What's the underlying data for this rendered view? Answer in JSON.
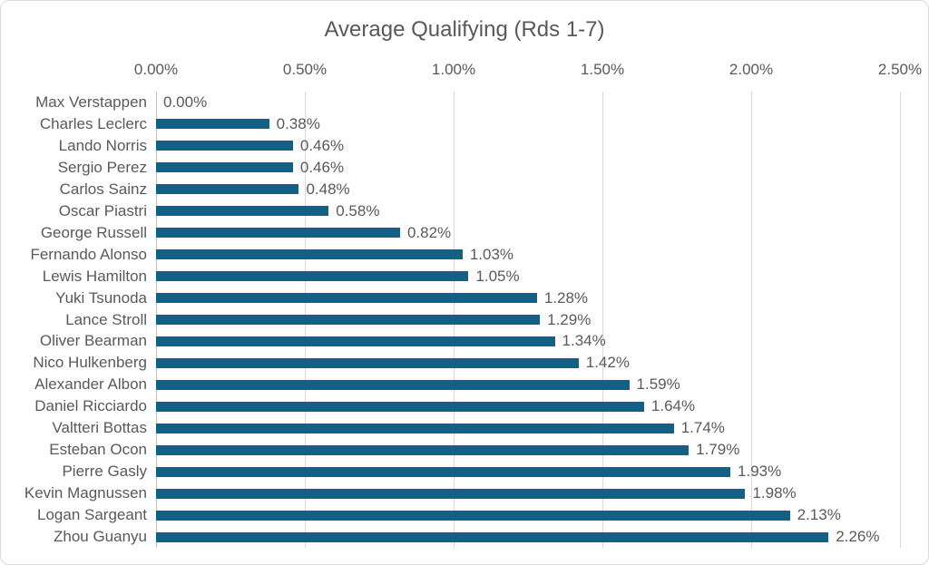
{
  "chart_data": {
    "type": "bar",
    "orientation": "horizontal",
    "title": "Average Qualifying (Rds 1-7)",
    "categories": [
      "Max Verstappen",
      "Charles Leclerc",
      "Lando Norris",
      "Sergio Perez",
      "Carlos Sainz",
      "Oscar Piastri",
      "George Russell",
      "Fernando Alonso",
      "Lewis Hamilton",
      "Yuki Tsunoda",
      "Lance Stroll",
      "Oliver Bearman",
      "Nico Hulkenberg",
      "Alexander Albon",
      "Daniel Ricciardo",
      "Valtteri Bottas",
      "Esteban Ocon",
      "Pierre Gasly",
      "Kevin Magnussen",
      "Logan Sargeant",
      "Zhou Guanyu"
    ],
    "values": [
      0.0,
      0.38,
      0.46,
      0.46,
      0.48,
      0.58,
      0.82,
      1.03,
      1.05,
      1.28,
      1.29,
      1.34,
      1.42,
      1.59,
      1.64,
      1.74,
      1.79,
      1.93,
      1.98,
      2.13,
      2.26
    ],
    "value_labels": [
      "0.00%",
      "0.38%",
      "0.46%",
      "0.46%",
      "0.48%",
      "0.58%",
      "0.82%",
      "1.03%",
      "1.05%",
      "1.28%",
      "1.29%",
      "1.34%",
      "1.42%",
      "1.59%",
      "1.64%",
      "1.74%",
      "1.79%",
      "1.93%",
      "1.98%",
      "2.13%",
      "2.26%"
    ],
    "x_ticks": [
      "0.00%",
      "0.50%",
      "1.00%",
      "1.50%",
      "2.00%",
      "2.50%"
    ],
    "x_tick_values": [
      0,
      0.5,
      1.0,
      1.5,
      2.0,
      2.5
    ],
    "xlim": [
      0,
      2.5
    ],
    "axis_position": "top",
    "grid": true,
    "legend_visible": false,
    "bar_color": "#156082",
    "text_color": "#595959",
    "gridline_color": "#d9d9d9",
    "axis_line_color": "#bfbfbf"
  }
}
